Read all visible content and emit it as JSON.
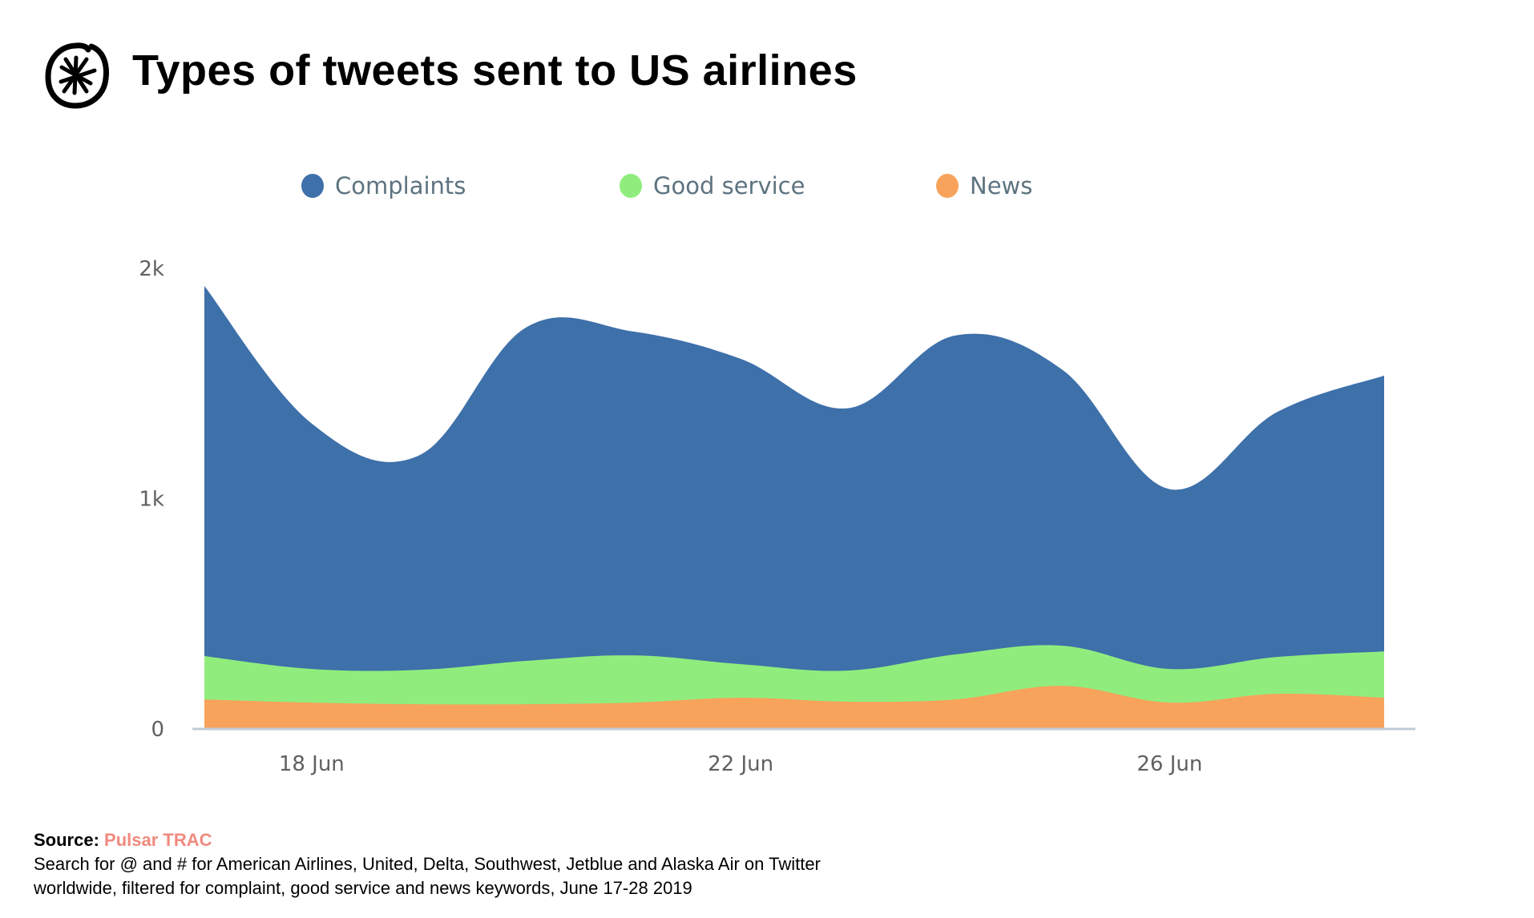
{
  "header": {
    "logo_icon": "asterisk-circle-icon",
    "title": "Types of tweets sent to US airlines"
  },
  "legend": [
    {
      "label": "Complaints",
      "color": "#3e70aa"
    },
    {
      "label": "Good service",
      "color": "#90ed7d"
    },
    {
      "label": "News",
      "color": "#f7a35c"
    }
  ],
  "footer": {
    "source_label": "Source:",
    "source_value": "Pulsar TRAC",
    "source_color": "#f08a7e",
    "line1": "Search for @ and # for American Airlines, United, Delta, Southwest, Jetblue and Alaska Air on Twitter",
    "line2": "worldwide, filtered for complaint, good service and news keywords, June 17-28 2019"
  },
  "chart_data": {
    "type": "area",
    "stacked": true,
    "title": "Types of tweets sent to US airlines",
    "xlabel": "",
    "ylabel": "",
    "x": [
      "17 Jun",
      "18 Jun",
      "19 Jun",
      "20 Jun",
      "21 Jun",
      "22 Jun",
      "23 Jun",
      "24 Jun",
      "25 Jun",
      "26 Jun",
      "27 Jun",
      "28 Jun"
    ],
    "x_tick_labels": [
      "18 Jun",
      "22 Jun",
      "26 Jun"
    ],
    "x_tick_indices": [
      1,
      5,
      9
    ],
    "y_tick_labels": [
      "0",
      "1k",
      "2k"
    ],
    "y_tick_values": [
      0,
      1000,
      2000
    ],
    "ylim": [
      0,
      2000
    ],
    "grid": false,
    "legend_position": "top-center",
    "series": [
      {
        "name": "News",
        "color": "#f7a35c",
        "values": [
          125,
          111,
          104,
          104,
          111,
          132,
          115,
          125,
          184,
          111,
          149,
          132
        ]
      },
      {
        "name": "Good service",
        "color": "#90ed7d",
        "values": [
          188,
          146,
          149,
          188,
          205,
          146,
          135,
          195,
          174,
          146,
          160,
          201
        ]
      },
      {
        "name": "Complaints",
        "color": "#3e70aa",
        "values": [
          1607,
          1066,
          931,
          1448,
          1406,
          1326,
          1139,
          1385,
          1198,
          781,
          1063,
          1198
        ]
      }
    ]
  }
}
